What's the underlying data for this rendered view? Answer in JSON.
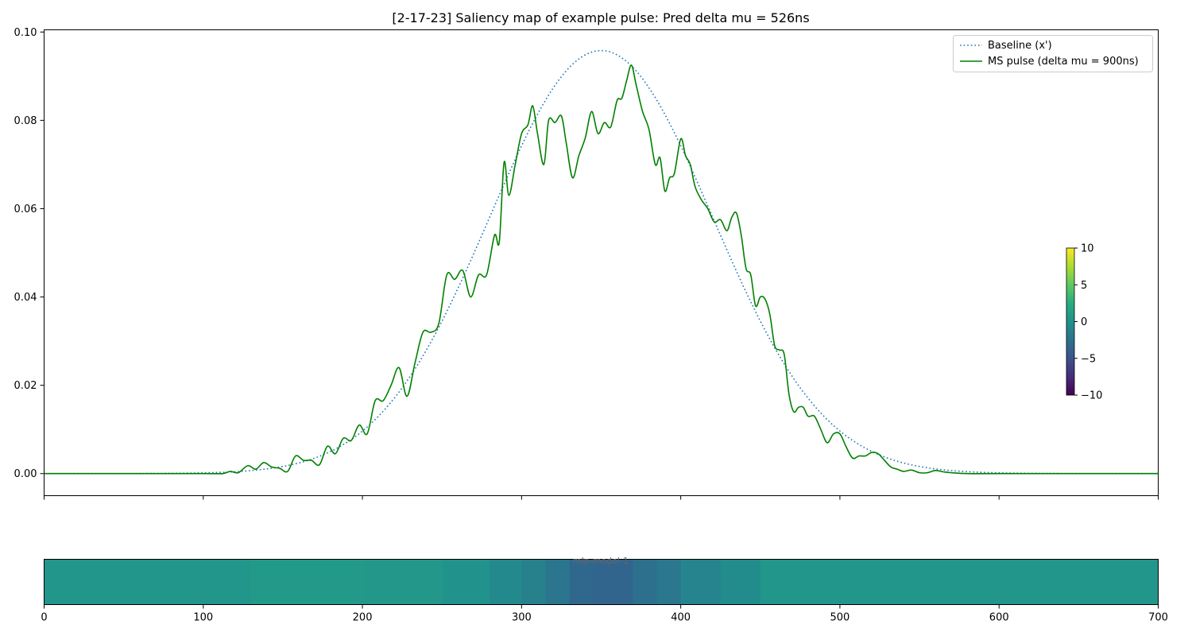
{
  "chart_data": [
    {
      "type": "line",
      "title": "[2-17-23] Saliency map of example pulse: Pred delta mu = 526ns",
      "xlabel": "",
      "ylabel": "",
      "xlim": [
        0,
        700
      ],
      "ylim": [
        -0.005,
        0.1005
      ],
      "yticks": [
        "0.00",
        "0.02",
        "0.04",
        "0.06",
        "0.08",
        "0.10"
      ],
      "xticks_shown": false,
      "grid": false,
      "legend_position": "top-right",
      "series": [
        {
          "name": "Baseline (x')",
          "style": "dotted",
          "color": "#1f77b4",
          "shape": "gaussian",
          "gaussian": {
            "amplitude": 0.0958,
            "mean": 350,
            "sigma": 70
          }
        },
        {
          "name": "MS pulse (delta mu = 900ns)",
          "style": "solid",
          "color": "#008000",
          "x": [
            0,
            100,
            112,
            117,
            122,
            128,
            133,
            138,
            143,
            148,
            153,
            158,
            163,
            168,
            173,
            178,
            183,
            188,
            193,
            198,
            203,
            208,
            213,
            218,
            223,
            228,
            233,
            238,
            243,
            248,
            253,
            258,
            263,
            268,
            273,
            278,
            283,
            286,
            289,
            292,
            296,
            300,
            304,
            307,
            310,
            314,
            317,
            321,
            325,
            328,
            332,
            336,
            340,
            344,
            348,
            352,
            356,
            360,
            363,
            366,
            369,
            372,
            376,
            380,
            384,
            387,
            390,
            393,
            396,
            400,
            403,
            406,
            409,
            413,
            417,
            421,
            425,
            429,
            432,
            435,
            438,
            441,
            444,
            447,
            450,
            453,
            456,
            459,
            462,
            465,
            468,
            471,
            474,
            477,
            480,
            484,
            488,
            492,
            496,
            500,
            504,
            508,
            512,
            516,
            520,
            524,
            528,
            532,
            536,
            540,
            545,
            550,
            555,
            560,
            565,
            570,
            580,
            600,
            700
          ],
          "y": [
            0,
            0,
            0,
            0.0005,
            0.0002,
            0.0018,
            0.001,
            0.0025,
            0.0015,
            0.0012,
            0.0005,
            0.004,
            0.003,
            0.003,
            0.002,
            0.0062,
            0.0045,
            0.008,
            0.0075,
            0.011,
            0.009,
            0.0165,
            0.0165,
            0.02,
            0.024,
            0.0175,
            0.025,
            0.032,
            0.032,
            0.034,
            0.045,
            0.044,
            0.046,
            0.04,
            0.045,
            0.045,
            0.054,
            0.0525,
            0.0705,
            0.063,
            0.07,
            0.077,
            0.079,
            0.0833,
            0.077,
            0.07,
            0.08,
            0.0795,
            0.081,
            0.075,
            0.067,
            0.072,
            0.076,
            0.082,
            0.077,
            0.0795,
            0.0785,
            0.0845,
            0.085,
            0.089,
            0.0925,
            0.088,
            0.082,
            0.078,
            0.07,
            0.0715,
            0.064,
            0.067,
            0.068,
            0.0758,
            0.072,
            0.07,
            0.065,
            0.062,
            0.06,
            0.057,
            0.0575,
            0.055,
            0.058,
            0.059,
            0.054,
            0.0465,
            0.045,
            0.038,
            0.04,
            0.0395,
            0.036,
            0.029,
            0.028,
            0.027,
            0.018,
            0.014,
            0.015,
            0.015,
            0.013,
            0.013,
            0.01,
            0.007,
            0.009,
            0.009,
            0.006,
            0.0035,
            0.004,
            0.004,
            0.0048,
            0.0045,
            0.003,
            0.0015,
            0.001,
            0.0005,
            0.0008,
            0.0002,
            0.0002,
            0.0007,
            0.0004,
            0.0002,
            0,
            0,
            0
          ]
        }
      ]
    },
    {
      "type": "colorbar",
      "ticks": [
        "10",
        "5",
        "0",
        "−5",
        "−10"
      ],
      "range": [
        -10,
        10
      ],
      "colormap": "viridis"
    },
    {
      "type": "heatmap",
      "label": "mlp-model-1",
      "xlim": [
        0,
        700
      ],
      "xticks": [
        "0",
        "100",
        "200",
        "300",
        "400",
        "500",
        "600",
        "700"
      ],
      "colormap": "viridis",
      "color_range": [
        -10,
        10
      ],
      "segments": [
        {
          "x0": 0,
          "x1": 130,
          "value": 0.5
        },
        {
          "x0": 130,
          "x1": 200,
          "value": 0.9
        },
        {
          "x0": 200,
          "x1": 250,
          "value": 0.7
        },
        {
          "x0": 250,
          "x1": 280,
          "value": 0.2
        },
        {
          "x0": 280,
          "x1": 300,
          "value": -0.6
        },
        {
          "x0": 300,
          "x1": 315,
          "value": -1.2
        },
        {
          "x0": 315,
          "x1": 330,
          "value": -2.2
        },
        {
          "x0": 330,
          "x1": 345,
          "value": -3.2
        },
        {
          "x0": 345,
          "x1": 370,
          "value": -3.4
        },
        {
          "x0": 370,
          "x1": 385,
          "value": -2.6
        },
        {
          "x0": 385,
          "x1": 400,
          "value": -2.0
        },
        {
          "x0": 400,
          "x1": 425,
          "value": -1.0
        },
        {
          "x0": 425,
          "x1": 450,
          "value": -0.3
        },
        {
          "x0": 450,
          "x1": 700,
          "value": 0.5
        }
      ]
    }
  ]
}
